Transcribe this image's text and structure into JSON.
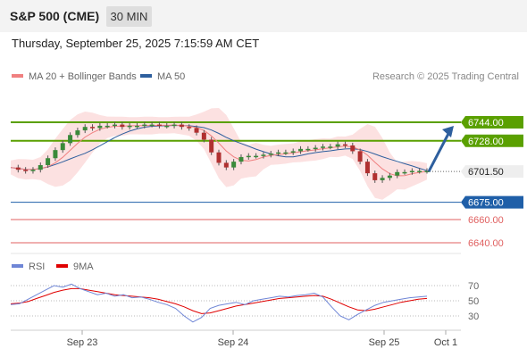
{
  "header": {
    "title": "S&P 500 (CME)",
    "timeframe": "30 MIN"
  },
  "datetime": "Thursday, September 25, 2025 7:15:59 AM CET",
  "legend": {
    "ma20": {
      "label": "MA 20 + Bollinger Bands",
      "color": "#f08080"
    },
    "ma50": {
      "label": "MA 50",
      "color": "#2e5f9e"
    },
    "rsi": {
      "label": "RSI",
      "color": "#6f86d6"
    },
    "ma9": {
      "label": "9MA",
      "color": "#e00000"
    }
  },
  "credit": "Research © 2025 Trading Central",
  "chart_data": [
    {
      "type": "line",
      "title": "S&P 500 (CME)",
      "x_labels": [
        "Sep 23",
        "Sep 24",
        "Sep 25",
        "Oct 1"
      ],
      "price": 6701.5,
      "price_label": "6701.50",
      "levels": [
        {
          "label": "6744.00",
          "value": 6744.0,
          "kind": "resistance",
          "color": "#5aa000"
        },
        {
          "label": "6728.00",
          "value": 6728.0,
          "kind": "resistance",
          "color": "#5aa000"
        },
        {
          "label": "6675.00",
          "value": 6675.0,
          "kind": "pivot",
          "color": "#1f5fa8"
        },
        {
          "label": "6660.00",
          "value": 6660.0,
          "kind": "support",
          "color": "#e06060"
        },
        {
          "label": "6640.00",
          "value": 6640.0,
          "kind": "support",
          "color": "#e06060"
        }
      ],
      "close_series": [
        6705,
        6703,
        6702,
        6703,
        6707,
        6713,
        6720,
        6726,
        6733,
        6737,
        6740,
        6739,
        6741,
        6741,
        6742,
        6740,
        6741,
        6741,
        6742,
        6742,
        6741,
        6741,
        6742,
        6740,
        6739,
        6735,
        6729,
        6718,
        6709,
        6705,
        6710,
        6714,
        6715,
        6715,
        6716,
        6717,
        6718,
        6718,
        6719,
        6721,
        6721,
        6722,
        6723,
        6723,
        6725,
        6724,
        6719,
        6710,
        6700,
        6694,
        6696,
        6698,
        6701,
        6701,
        6702,
        6702,
        6702
      ],
      "target_arrow": {
        "from": 6701.5,
        "to": 6744.0
      }
    },
    {
      "type": "line",
      "title": "RSI",
      "y_ticks": [
        30,
        50,
        70
      ],
      "y_tick_labels": [
        "30",
        "50",
        "70"
      ],
      "series": [
        {
          "name": "RSI",
          "values": [
            45,
            46,
            52,
            58,
            64,
            70,
            68,
            72,
            66,
            62,
            58,
            60,
            56,
            58,
            54,
            55,
            52,
            48,
            45,
            40,
            30,
            22,
            28,
            40,
            44,
            46,
            48,
            45,
            50,
            52,
            54,
            56,
            55,
            57,
            58,
            60,
            55,
            42,
            30,
            25,
            32,
            38,
            44,
            48,
            50,
            52,
            54,
            55,
            56
          ]
        },
        {
          "name": "9MA",
          "values": [
            46,
            47,
            49,
            53,
            57,
            61,
            64,
            66,
            66,
            64,
            62,
            60,
            58,
            57,
            56,
            55,
            54,
            52,
            49,
            46,
            42,
            37,
            33,
            34,
            37,
            40,
            43,
            45,
            47,
            49,
            51,
            53,
            54,
            55,
            56,
            57,
            56,
            52,
            47,
            42,
            38,
            37,
            39,
            42,
            45,
            48,
            50,
            52,
            53
          ]
        }
      ]
    }
  ]
}
